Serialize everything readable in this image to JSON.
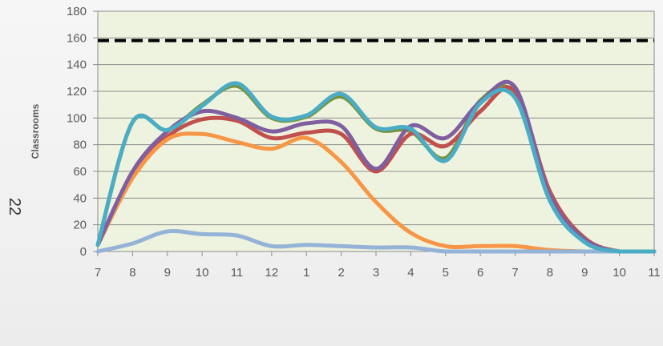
{
  "page_number": "22",
  "colors": {
    "plot_bg": "#eef3df",
    "grid": "#8c8c8c",
    "axis": "#8c8c8c",
    "threshold": "#000000"
  },
  "chart_data": {
    "type": "line",
    "title": "",
    "xlabel": "",
    "ylabel": "Classrooms",
    "x_ticks": [
      "7",
      "8",
      "9",
      "10",
      "11",
      "12",
      "1",
      "2",
      "3",
      "4",
      "5",
      "6",
      "7",
      "8",
      "9",
      "10",
      "11"
    ],
    "y_ticks": [
      0,
      20,
      40,
      60,
      80,
      100,
      120,
      140,
      160,
      180
    ],
    "ylim": [
      0,
      180
    ],
    "grid": "horizontal",
    "legend": "none",
    "smooth": true,
    "threshold": {
      "value": 158,
      "style": "dashed",
      "color": "#000000"
    },
    "series": [
      {
        "color": "#77933c",
        "values": [
          5,
          97,
          91,
          110,
          124,
          100,
          101,
          116,
          92,
          90,
          70,
          113,
          118,
          40,
          8,
          0,
          0
        ]
      },
      {
        "color": "#c0504d",
        "values": [
          5,
          58,
          86,
          99,
          98,
          85,
          89,
          88,
          60,
          88,
          79,
          105,
          120,
          45,
          10,
          0,
          0
        ]
      },
      {
        "color": "#f79646",
        "values": [
          5,
          55,
          84,
          88,
          82,
          77,
          85,
          67,
          37,
          14,
          4,
          4,
          4,
          1,
          0,
          0,
          0
        ]
      },
      {
        "color": "#7f5fa0",
        "values": [
          5,
          60,
          90,
          105,
          100,
          90,
          96,
          94,
          62,
          94,
          85,
          112,
          123,
          42,
          9,
          0,
          0
        ]
      },
      {
        "color": "#95b3d7",
        "values": [
          0,
          6,
          15,
          13,
          12,
          4,
          5,
          4,
          3,
          3,
          0,
          0,
          0,
          0,
          0,
          0,
          0
        ]
      },
      {
        "color": "#4bacc6",
        "values": [
          5,
          97,
          91,
          109,
          126,
          101,
          102,
          118,
          93,
          92,
          68,
          111,
          115,
          38,
          7,
          0,
          0
        ]
      }
    ]
  }
}
